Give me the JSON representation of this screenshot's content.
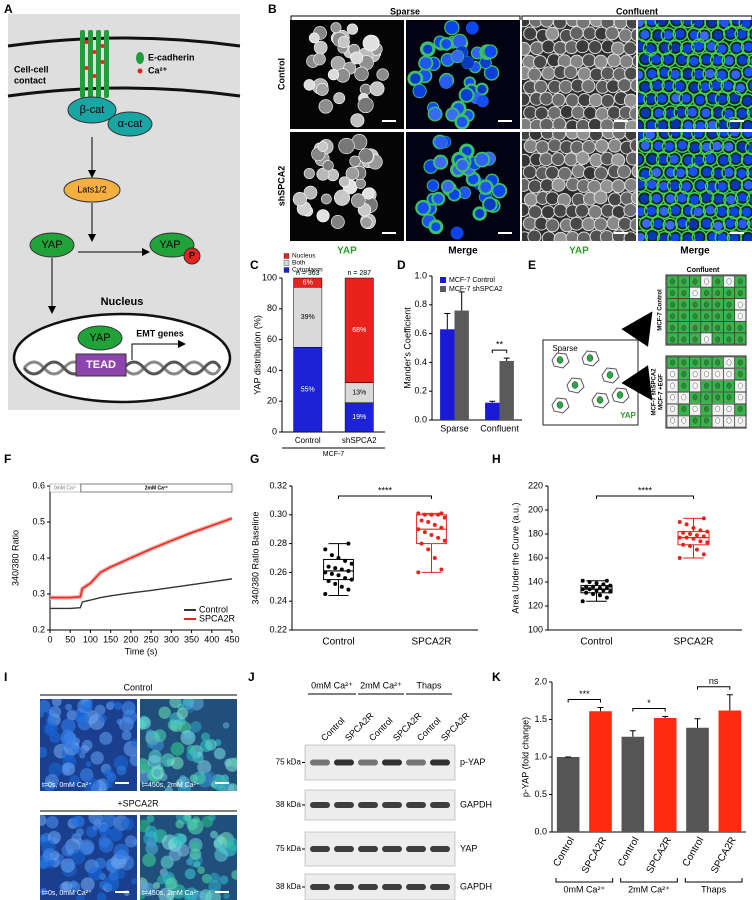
{
  "panel_labels": [
    "A",
    "B",
    "C",
    "D",
    "E",
    "F",
    "G",
    "H",
    "I",
    "J",
    "K"
  ],
  "diagram": {
    "cell_contact": [
      "Cell-cell",
      "contact"
    ],
    "ecadherin": "E-cadherin",
    "calcium": "Ca²⁺",
    "beta_cat": "β-cat",
    "alpha_cat": "α-cat",
    "lats": "Lats1/2",
    "yap": "YAP",
    "yap_p": "YAP",
    "phospho": "P",
    "nucleus": "Nucleus",
    "yap_nuc": "YAP",
    "tead": "TEAD",
    "emt": "EMT genes"
  },
  "imaging": {
    "columns": [
      "Sparse",
      "Confluent"
    ],
    "rows": [
      "Control",
      "shSPCA2"
    ],
    "channels": [
      "YAP",
      "Merge",
      "YAP",
      "Merge"
    ]
  },
  "schematic": {
    "sparse": "Sparse",
    "yap": "YAP",
    "confluent": "Confluent",
    "control": "MCF-7 Control",
    "knockdown": [
      "MCF-7 shSPCA2",
      "MCF-7 +EGF"
    ]
  },
  "calcium_imaging": {
    "groups": [
      "Control",
      "+SPCA2R"
    ],
    "captions": [
      "t=0s, 0mM Ca²⁺",
      "t=450s, 2mM Ca²⁺",
      "t=0s, 0mM Ca²⁺",
      "t=450s, 2mM Ca²⁺"
    ]
  },
  "western_blot": {
    "conditions": [
      "0mM Ca²⁺",
      "2mM Ca²⁺",
      "Thaps"
    ],
    "lanes": [
      "Control",
      "SPCA2R",
      "Control",
      "SPCA2R",
      "Control",
      "SPCA2R"
    ],
    "blots": [
      {
        "marker": "75 kDa",
        "protein": "p-YAP"
      },
      {
        "marker": "38 kDa",
        "protein": "GAPDH"
      },
      {
        "marker": "75 kDa",
        "protein": "YAP"
      },
      {
        "marker": "38 kDa",
        "protein": "GAPDH"
      }
    ]
  },
  "chart_data": [
    {
      "type": "stacked_bar",
      "ylabel": "YAP distribution (%)",
      "xlabel": "MCF-7",
      "categories": [
        "Control",
        "shSPCA2"
      ],
      "counts": [
        "n = 363",
        "n = 287"
      ],
      "series": [
        {
          "name": "Cytoplasm",
          "color": "#1c22d6",
          "values": [
            55,
            19
          ],
          "value_labels": [
            "55%",
            "19%"
          ]
        },
        {
          "name": "Both",
          "color": "#d9d9d9",
          "values": [
            39,
            13
          ],
          "value_labels": [
            "39%",
            "13%"
          ]
        },
        {
          "name": "Nucleus",
          "color": "#e8221c",
          "values": [
            6,
            68
          ],
          "value_labels": [
            "6%",
            "68%"
          ]
        }
      ],
      "ylim": [
        0,
        100
      ],
      "yticks": [
        0,
        20,
        40,
        60,
        80,
        100
      ]
    },
    {
      "type": "bar",
      "ylabel": "Mander's Coefficient",
      "categories": [
        "Sparse",
        "Confluent"
      ],
      "series": [
        {
          "name": "MCF-7 Control",
          "color": "#1a1ad6",
          "values": [
            0.63,
            0.12
          ],
          "errors": [
            0.11,
            0.01
          ]
        },
        {
          "name": "MCF-7 shSPCA2",
          "color": "#5a5a5a",
          "values": [
            0.76,
            0.41
          ],
          "errors": [
            0.13,
            0.02
          ]
        }
      ],
      "significance": [
        null,
        "**"
      ],
      "ylim": [
        0,
        1
      ],
      "yticks": [
        {
          "value": 0,
          "label": "0.0"
        },
        0.2,
        0.4,
        0.6,
        0.8,
        {
          "value": 1,
          "label": "1.0"
        }
      ]
    },
    {
      "type": "line",
      "xlabel": "Time (s)",
      "ylabel": "340/380 Ratio",
      "phases": [
        "0mM Ca²⁺",
        "2mM Ca²⁺"
      ],
      "x": [
        0,
        25,
        50,
        75,
        80,
        100,
        125,
        150,
        200,
        250,
        300,
        350,
        400,
        450
      ],
      "series": [
        {
          "name": "Control",
          "color": "#333333",
          "values": [
            0.26,
            0.26,
            0.26,
            0.262,
            0.278,
            0.283,
            0.29,
            0.295,
            0.303,
            0.31,
            0.318,
            0.326,
            0.334,
            0.342
          ]
        },
        {
          "name": "SPCA2R",
          "color": "#e8221c",
          "values": [
            0.29,
            0.29,
            0.29,
            0.292,
            0.315,
            0.33,
            0.36,
            0.375,
            0.4,
            0.425,
            0.448,
            0.47,
            0.49,
            0.51
          ]
        }
      ],
      "xlim": [
        0,
        450
      ],
      "xticks": [
        0,
        50,
        100,
        150,
        200,
        250,
        300,
        350,
        400,
        450
      ],
      "ylim": [
        0.2,
        0.6
      ],
      "yticks": [
        0.2,
        0.3,
        0.4,
        0.5,
        0.6
      ]
    },
    {
      "type": "box",
      "ylabel": "340/380 Ratio Baseline",
      "categories": [
        "Control",
        "SPCA2R"
      ],
      "colors": [
        "#000000",
        "#e8221c"
      ],
      "significance": "****",
      "boxes": [
        {
          "min": 0.244,
          "q1": 0.255,
          "median": 0.261,
          "q3": 0.269,
          "max": 0.28,
          "points": [
            0.245,
            0.248,
            0.25,
            0.252,
            0.254,
            0.255,
            0.256,
            0.258,
            0.259,
            0.26,
            0.261,
            0.262,
            0.263,
            0.264,
            0.266,
            0.268,
            0.27,
            0.272,
            0.276,
            0.28
          ]
        },
        {
          "min": 0.26,
          "q1": 0.28,
          "median": 0.29,
          "q3": 0.3,
          "max": 0.301,
          "points": [
            0.26,
            0.262,
            0.27,
            0.276,
            0.28,
            0.282,
            0.284,
            0.286,
            0.288,
            0.29,
            0.291,
            0.293,
            0.295,
            0.296,
            0.298,
            0.3,
            0.3,
            0.3,
            0.301,
            0.301
          ]
        }
      ],
      "ylim": [
        0.22,
        0.32
      ],
      "yticks": [
        0.22,
        0.24,
        0.26,
        0.28,
        {
          "value": 0.3,
          "label": "0.30"
        },
        0.32
      ]
    },
    {
      "type": "box",
      "ylabel": "Area Under the Curve (a.u.)",
      "categories": [
        "Control",
        "SPCA2R"
      ],
      "colors": [
        "#000000",
        "#e8221c"
      ],
      "significance": "****",
      "boxes": [
        {
          "min": 124,
          "q1": 131,
          "median": 134,
          "q3": 137,
          "max": 141,
          "points": [
            124,
            127,
            129,
            130,
            131,
            132,
            133,
            133,
            134,
            134,
            135,
            135,
            136,
            136,
            137,
            138,
            139,
            140,
            141,
            141
          ]
        },
        {
          "min": 160,
          "q1": 171,
          "median": 177,
          "q3": 182,
          "max": 193,
          "points": [
            160,
            163,
            167,
            170,
            171,
            173,
            174,
            176,
            177,
            177,
            178,
            179,
            180,
            181,
            182,
            183,
            185,
            188,
            190,
            193
          ]
        }
      ],
      "ylim": [
        100,
        220
      ],
      "yticks": [
        100,
        120,
        140,
        160,
        180,
        200,
        220
      ]
    },
    {
      "type": "bar",
      "ylabel": "p-YAP (fold change)",
      "categories": [
        "Control",
        "SPCA2R",
        "Control",
        "SPCA2R",
        "Control",
        "SPCA2R"
      ],
      "values": [
        1.0,
        1.61,
        1.27,
        1.52,
        1.39,
        1.62
      ],
      "errors": [
        0,
        0.05,
        0.08,
        0.02,
        0.12,
        0.21
      ],
      "colors": [
        "#555555",
        "#ff2a10",
        "#555555",
        "#ff2a10",
        "#555555",
        "#ff2a10"
      ],
      "groups": [
        "0mM Ca²⁺",
        "2mM Ca²⁺",
        "Thaps"
      ],
      "significance": [
        "***",
        "*",
        "ns"
      ],
      "ylim": [
        0,
        2
      ],
      "yticks": [
        {
          "value": 0,
          "label": "0.0"
        },
        0.5,
        {
          "value": 1,
          "label": "1.0"
        },
        1.5,
        {
          "value": 2,
          "label": "2.0"
        }
      ]
    }
  ]
}
